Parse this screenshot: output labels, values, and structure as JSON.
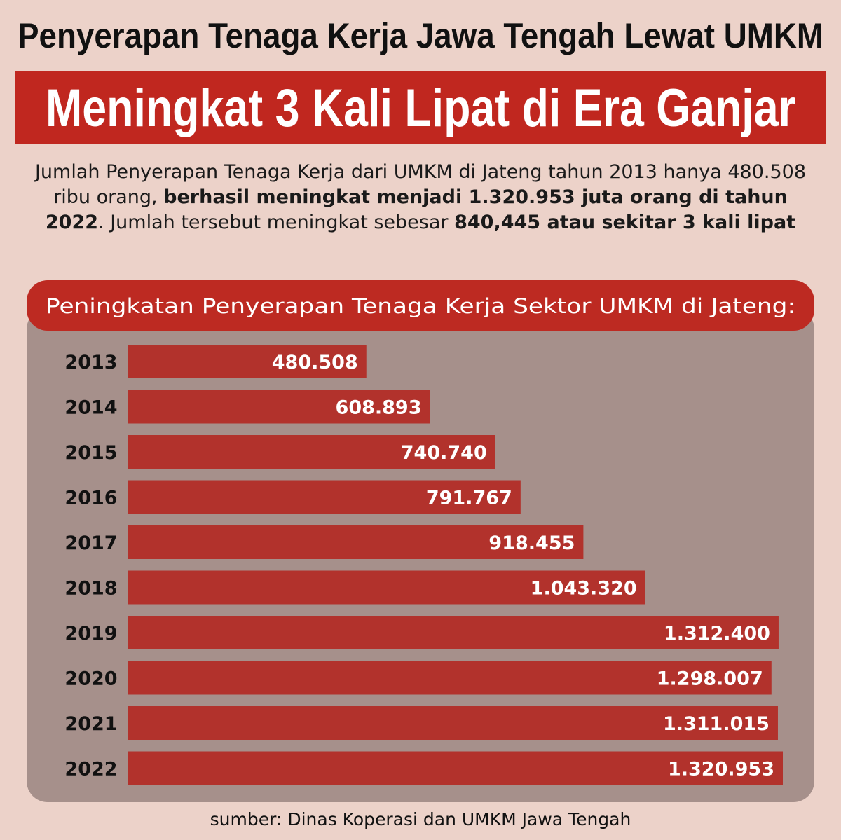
{
  "chart_data": {
    "type": "bar",
    "orientation": "horizontal",
    "title": "Penyerapan Tenaga Kerja Jawa Tengah Lewat UMKM",
    "subtitle": "Meningkat 3 Kali Lipat di Era Ganjar",
    "description": [
      {
        "text": "Jumlah Penyerapan Tenaga Kerja dari UMKM di Jateng tahun 2013 hanya 480.508 ribu orang, ",
        "bold": false
      },
      {
        "text": "berhasil meningkat menjadi 1.320.953 juta orang di tahun 2022",
        "bold": true
      },
      {
        "text": ". Jumlah tersebut meningkat sebesar ",
        "bold": false
      },
      {
        "text": "840,445 atau sekitar 3 kali lipat",
        "bold": true
      }
    ],
    "chart_title": "Peningkatan Penyerapan Tenaga Kerja Sektor UMKM di Jateng:",
    "categories": [
      "2013",
      "2014",
      "2015",
      "2016",
      "2017",
      "2018",
      "2019",
      "2020",
      "2021",
      "2022"
    ],
    "values": [
      480508,
      608893,
      740740,
      791767,
      918455,
      1043320,
      1312400,
      1298007,
      1311015,
      1320953
    ],
    "value_labels": [
      "480.508",
      "608.893",
      "740.740",
      "791.767",
      "918.455",
      "1.043.320",
      "1.312.400",
      "1.298.007",
      "1.311.015",
      "1.320.953"
    ],
    "color": "#b32a24",
    "source": "sumber: Dinas Koperasi dan UMKM Jawa Tengah"
  }
}
